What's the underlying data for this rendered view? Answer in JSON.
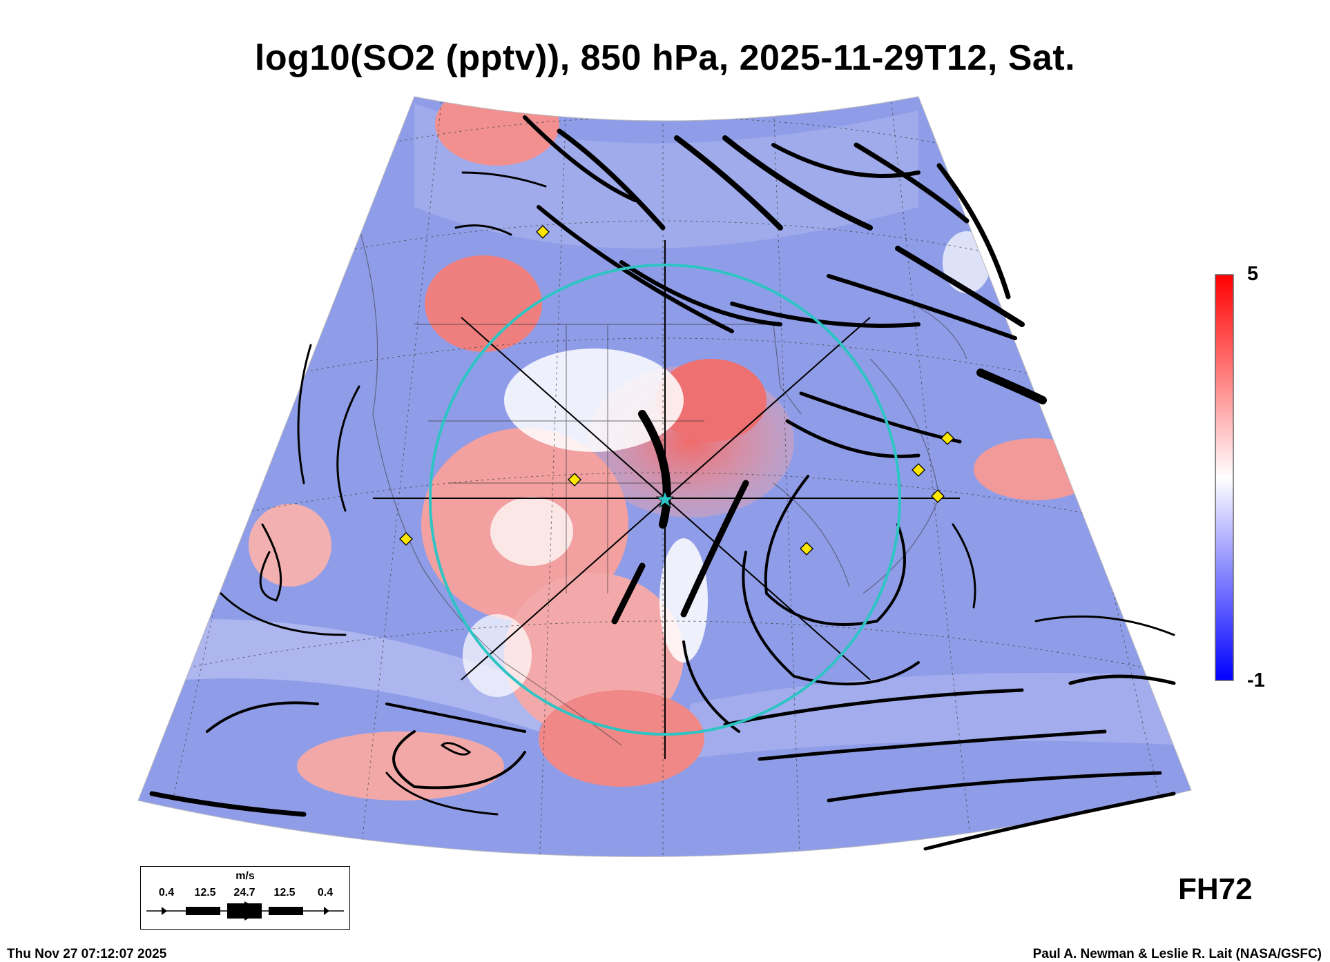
{
  "title": "log10(SO2 (pptv)), 850 hPa, 2025-11-29T12, Sat.",
  "colorbar": {
    "max_label": "5",
    "min_label": "-1",
    "colors": [
      "#ff0000",
      "#ffffff",
      "#0000ff"
    ]
  },
  "forecast_hour": "FH72",
  "timestamp": "Thu Nov 27 07:12:07 2025",
  "credit": "Paul A. Newman & Leslie R. Lait (NASA/GSFC)",
  "wind_legend": {
    "unit": "m/s",
    "values": [
      "0.4",
      "12.5",
      "24.7",
      "12.5",
      "0.4"
    ]
  },
  "colors": {
    "background_field": "#8f9de8",
    "high_so2": "#f07a7a",
    "low_so2": "#ffffff",
    "ring": "#2ec4c4",
    "station_marker": "#ffe600"
  }
}
